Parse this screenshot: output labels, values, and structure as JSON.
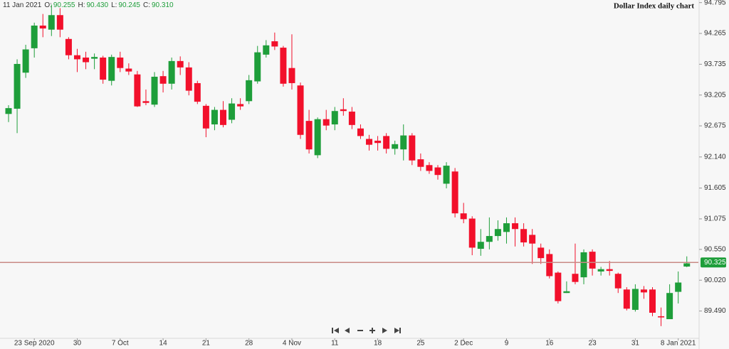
{
  "chart_data": {
    "type": "candlestick",
    "title": "Dollar Index daily chart",
    "header": {
      "date": "11 Jan 2021",
      "items": [
        {
          "label": "O:",
          "value": {
            "value": 90.255,
            "label": "90.255"
          }
        },
        {
          "label": "H:",
          "value": {
            "value": 90.43,
            "label": "90.430"
          }
        },
        {
          "label": "L:",
          "value": {
            "value": 90.245,
            "label": "90.245"
          }
        },
        {
          "label": "C:",
          "value": {
            "value": 90.31,
            "label": "90.310"
          }
        }
      ]
    },
    "categories": [
      null,
      null,
      null,
      "23 Sep 2020",
      null,
      null,
      null,
      null,
      "30",
      null,
      null,
      null,
      null,
      "7 Oct",
      null,
      null,
      null,
      null,
      "14",
      null,
      null,
      null,
      null,
      "21",
      null,
      null,
      null,
      null,
      "28",
      null,
      null,
      null,
      null,
      "4 Nov",
      null,
      null,
      null,
      null,
      "11",
      null,
      null,
      null,
      null,
      "18",
      null,
      null,
      null,
      null,
      "25",
      null,
      null,
      null,
      null,
      "2 Dec",
      null,
      null,
      null,
      null,
      "9",
      null,
      null,
      null,
      null,
      "16",
      null,
      null,
      null,
      null,
      "23",
      null,
      null,
      null,
      null,
      "31",
      null,
      null,
      null,
      null,
      "8 Jan 2021",
      null
    ],
    "open": [
      92.88,
      92.97,
      93.59,
      94.01,
      94.4,
      94.33,
      94.58,
      94.17,
      93.89,
      93.85,
      93.83,
      93.85,
      93.45,
      93.85,
      93.66,
      93.56,
      93.1,
      93.04,
      93.53,
      93.4,
      93.79,
      93.68,
      93.41,
      93.02,
      92.7,
      92.95,
      92.78,
      93.05,
      93.1,
      93.44,
      93.9,
      94.13,
      94.02,
      93.67,
      93.37,
      92.76,
      92.17,
      92.79,
      92.7,
      92.96,
      92.92,
      92.63,
      92.45,
      92.42,
      92.5,
      92.28,
      92.27,
      92.51,
      92.1,
      92.0,
      91.96,
      91.68,
      91.89,
      91.17,
      91.08,
      90.56,
      90.68,
      90.78,
      90.85,
      91.0,
      90.9,
      90.8,
      90.58,
      90.47,
      90.15,
      89.8,
      90.13,
      90.07,
      90.51,
      90.17,
      90.21,
      90.13,
      89.86,
      89.51,
      89.86,
      89.86,
      89.4,
      89.35,
      89.82,
      90.255
    ],
    "high": [
      93.03,
      93.82,
      94.07,
      94.45,
      94.6,
      94.76,
      94.7,
      94.2,
      94.0,
      93.95,
      93.92,
      93.88,
      93.9,
      93.95,
      93.75,
      93.62,
      93.3,
      93.6,
      93.62,
      93.85,
      93.87,
      93.77,
      93.45,
      93.05,
      93.0,
      93.1,
      93.15,
      93.15,
      93.55,
      94.05,
      94.15,
      94.28,
      94.05,
      94.25,
      93.42,
      92.95,
      92.82,
      92.95,
      93.0,
      93.15,
      93.0,
      92.7,
      92.52,
      92.5,
      92.55,
      92.42,
      92.7,
      92.55,
      92.2,
      92.05,
      92.0,
      92.05,
      91.95,
      91.35,
      91.12,
      90.9,
      91.1,
      91.05,
      91.1,
      91.1,
      91.0,
      90.9,
      90.65,
      90.55,
      90.17,
      90.0,
      90.65,
      90.55,
      90.55,
      90.25,
      90.35,
      90.15,
      89.9,
      89.95,
      89.92,
      89.9,
      89.55,
      89.95,
      90.17,
      90.43
    ],
    "low": [
      92.74,
      92.55,
      93.5,
      93.85,
      94.2,
      94.22,
      94.2,
      93.82,
      93.6,
      93.65,
      93.65,
      93.4,
      93.37,
      93.6,
      93.55,
      93.0,
      93.03,
      93.0,
      93.25,
      93.3,
      93.55,
      93.2,
      93.05,
      92.48,
      92.6,
      92.65,
      92.72,
      92.95,
      93.05,
      93.4,
      93.85,
      93.98,
      93.35,
      93.3,
      92.45,
      92.2,
      92.12,
      92.6,
      92.6,
      92.85,
      92.62,
      92.45,
      92.25,
      92.25,
      92.2,
      92.18,
      92.08,
      92.0,
      91.9,
      91.85,
      91.75,
      91.6,
      91.1,
      91.0,
      90.45,
      90.44,
      90.55,
      90.7,
      90.65,
      90.6,
      90.6,
      90.3,
      90.3,
      90.05,
      89.62,
      89.8,
      89.95,
      89.95,
      90.1,
      90.1,
      90.1,
      89.8,
      89.5,
      89.48,
      89.7,
      89.4,
      89.23,
      89.35,
      89.62,
      90.245
    ],
    "close": [
      92.98,
      93.74,
      93.99,
      94.4,
      94.35,
      94.58,
      94.33,
      93.89,
      93.82,
      93.77,
      93.86,
      93.47,
      93.86,
      93.67,
      93.61,
      93.01,
      93.07,
      93.52,
      93.4,
      93.79,
      93.68,
      93.28,
      93.09,
      92.63,
      92.95,
      92.69,
      93.06,
      93.01,
      93.46,
      93.94,
      94.06,
      94.04,
      93.4,
      93.41,
      92.52,
      92.27,
      92.79,
      92.68,
      92.93,
      92.93,
      92.69,
      92.5,
      92.35,
      92.38,
      92.28,
      92.36,
      92.51,
      92.08,
      91.97,
      91.9,
      91.83,
      91.99,
      91.17,
      91.07,
      90.58,
      90.68,
      90.78,
      90.9,
      91.0,
      90.9,
      90.67,
      90.65,
      90.4,
      90.09,
      89.66,
      89.83,
      89.99,
      90.5,
      90.22,
      90.21,
      90.18,
      89.88,
      89.53,
      89.87,
      89.81,
      89.46,
      89.38,
      89.8,
      89.98,
      90.31
    ],
    "up_color": "#1e9e3a",
    "down_color": "#f2102b",
    "ylim": [
      89.02,
      94.84
    ],
    "yticks": [
      94.795,
      94.265,
      93.735,
      93.205,
      92.675,
      {
        "value": 92.14,
        "label": "92.140"
      },
      91.605,
      91.075,
      {
        "value": 90.55,
        "label": "90.550"
      },
      {
        "value": 90.02,
        "label": "90.020"
      },
      {
        "value": 89.49,
        "label": "89.490"
      }
    ],
    "price_line": {
      "value": 90.325,
      "color": "#c98a86",
      "label_color": "#1e9e3a"
    }
  }
}
